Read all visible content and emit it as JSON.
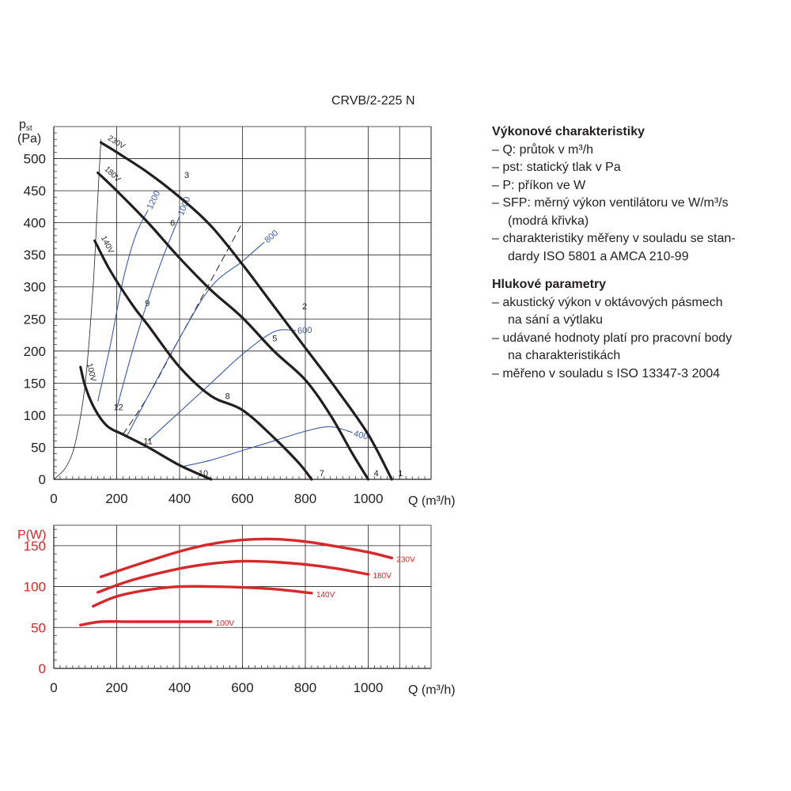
{
  "model": "CRVB/2-225 N",
  "legend": {
    "performance": {
      "heading": "Výkonové charakteristiky",
      "items": [
        "Q: průtok v m³/h",
        "pst: statický tlak v Pa",
        "P: příkon ve W",
        "SFP: měrný výkon ventilátoru ve W/m³/s",
        "charakteristiky měřeny v souladu se standardy ISO 5801 a AMCA 210-99"
      ],
      "lines": [
        [
          "Q: průtok v m³/h"
        ],
        [
          "pst: statický tlak v Pa"
        ],
        [
          "P: příkon ve W"
        ],
        [
          "SFP: měrný výkon ventilátoru ve W/m³/s",
          "(modrá křivka)"
        ],
        [
          "charakteristiky měřeny v souladu se stan-",
          "dardy ISO 5801 a AMCA 210-99"
        ]
      ]
    },
    "noise": {
      "heading": "Hlukové parametry",
      "lines": [
        [
          "akustický výkon v oktávových pásmech",
          "na sání a výtlaku"
        ],
        [
          "udávané hodnoty platí pro pracovní body",
          "na charakteristikách"
        ],
        [
          "měřeno v souladu s ISO 13347-3 2004"
        ]
      ]
    }
  },
  "chart_data": [
    {
      "type": "line",
      "ylabel_main": "p",
      "ylabel_sub": "st",
      "ylabel_unit": "(Pa)",
      "xlabel": "Q (m³/h)",
      "xlim": [
        0,
        1200
      ],
      "ylim": [
        0,
        550
      ],
      "x_ticks": [
        0,
        200,
        400,
        600,
        800,
        1000
      ],
      "y_ticks": [
        0,
        50,
        100,
        150,
        200,
        250,
        300,
        350,
        400,
        450,
        500
      ],
      "grid": true,
      "series": [
        {
          "name": "230V",
          "color": "#231f20",
          "points": [
            [
              150,
              525
            ],
            [
              200,
              510
            ],
            [
              300,
              478
            ],
            [
              400,
              440
            ],
            [
              500,
              395
            ],
            [
              600,
              335
            ],
            [
              700,
              270
            ],
            [
              800,
              205
            ],
            [
              900,
              140
            ],
            [
              1000,
              70
            ],
            [
              1075,
              0
            ]
          ]
        },
        {
          "name": "180V",
          "color": "#231f20",
          "points": [
            [
              140,
              478
            ],
            [
              200,
              450
            ],
            [
              300,
              400
            ],
            [
              400,
              345
            ],
            [
              500,
              295
            ],
            [
              600,
              252
            ],
            [
              700,
              200
            ],
            [
              800,
              155
            ],
            [
              880,
              100
            ],
            [
              950,
              40
            ],
            [
              1000,
              0
            ]
          ]
        },
        {
          "name": "140V",
          "color": "#231f20",
          "points": [
            [
              130,
              372
            ],
            [
              180,
              325
            ],
            [
              250,
              272
            ],
            [
              300,
              240
            ],
            [
              400,
              175
            ],
            [
              500,
              130
            ],
            [
              600,
              108
            ],
            [
              700,
              65
            ],
            [
              780,
              25
            ],
            [
              820,
              0
            ]
          ]
        },
        {
          "name": "100V",
          "color": "#231f20",
          "points": [
            [
              85,
              175
            ],
            [
              100,
              145
            ],
            [
              130,
              110
            ],
            [
              170,
              83
            ],
            [
              220,
              70
            ],
            [
              300,
              50
            ],
            [
              400,
              22
            ],
            [
              500,
              0
            ]
          ]
        }
      ],
      "sfp_curves": [
        {
          "name": "1200",
          "color": "#3a5ba7",
          "points": [
            [
              140,
              122
            ],
            [
              180,
              210
            ],
            [
              220,
              310
            ],
            [
              260,
              380
            ],
            [
              300,
              420
            ]
          ]
        },
        {
          "name": "1000",
          "color": "#3a5ba7",
          "points": [
            [
              200,
              110
            ],
            [
              250,
              200
            ],
            [
              300,
              280
            ],
            [
              350,
              350
            ],
            [
              400,
              410
            ]
          ]
        },
        {
          "name": "800",
          "color": "#3a5ba7",
          "points": [
            [
              230,
              65
            ],
            [
              300,
              130
            ],
            [
              400,
              220
            ],
            [
              500,
              300
            ],
            [
              600,
              340
            ],
            [
              670,
              370
            ]
          ]
        },
        {
          "name": "600",
          "color": "#3a5ba7",
          "points": [
            [
              300,
              60
            ],
            [
              400,
              105
            ],
            [
              500,
              150
            ],
            [
              600,
              195
            ],
            [
              700,
              230
            ],
            [
              770,
              232
            ]
          ]
        },
        {
          "name": "400",
          "color": "#3a5ba7",
          "points": [
            [
              410,
              20
            ],
            [
              500,
              30
            ],
            [
              600,
              45
            ],
            [
              700,
              60
            ],
            [
              800,
              75
            ],
            [
              880,
              82
            ],
            [
              950,
              73
            ]
          ]
        }
      ],
      "system_curve": {
        "points": [
          [
            0,
            0
          ],
          [
            40,
            20
          ],
          [
            70,
            60
          ],
          [
            100,
            150
          ],
          [
            125,
            300
          ],
          [
            140,
            440
          ],
          [
            150,
            530
          ]
        ]
      },
      "dashed_line": {
        "points": [
          [
            220,
            70
          ],
          [
            300,
            130
          ],
          [
            400,
            220
          ],
          [
            500,
            310
          ],
          [
            600,
            400
          ]
        ]
      },
      "operating_points": [
        {
          "label": "1",
          "x": 1085,
          "y": 0
        },
        {
          "label": "2",
          "x": 780,
          "y": 260
        },
        {
          "label": "3",
          "x": 405,
          "y": 465
        },
        {
          "label": "4",
          "x": 1008,
          "y": 0
        },
        {
          "label": "5",
          "x": 685,
          "y": 210
        },
        {
          "label": "6",
          "x": 360,
          "y": 390
        },
        {
          "label": "7",
          "x": 835,
          "y": 0
        },
        {
          "label": "8",
          "x": 535,
          "y": 120
        },
        {
          "label": "9",
          "x": 280,
          "y": 265
        },
        {
          "label": "10",
          "x": 450,
          "y": 0
        },
        {
          "label": "11",
          "x": 275,
          "y": 50
        },
        {
          "label": "12",
          "x": 180,
          "y": 103
        }
      ]
    },
    {
      "type": "line",
      "ylabel": "P(W)",
      "xlabel": "Q (m³/h)",
      "xlim": [
        0,
        1200
      ],
      "ylim": [
        0,
        175
      ],
      "x_ticks": [
        0,
        200,
        400,
        600,
        800,
        1000
      ],
      "y_ticks": [
        0,
        50,
        100,
        150
      ],
      "grid": true,
      "series": [
        {
          "name": "230V",
          "color": "#d7282b",
          "points": [
            [
              150,
              112
            ],
            [
              250,
              125
            ],
            [
              400,
              143
            ],
            [
              500,
              152
            ],
            [
              600,
              157
            ],
            [
              700,
              158
            ],
            [
              800,
              155
            ],
            [
              900,
              149
            ],
            [
              1000,
              142
            ],
            [
              1075,
              135
            ]
          ]
        },
        {
          "name": "180V",
          "color": "#d7282b",
          "points": [
            [
              140,
              93
            ],
            [
              250,
              108
            ],
            [
              400,
              122
            ],
            [
              500,
              128
            ],
            [
              600,
              131
            ],
            [
              700,
              130
            ],
            [
              800,
              127
            ],
            [
              900,
              122
            ],
            [
              1000,
              115
            ]
          ]
        },
        {
          "name": "140V",
          "color": "#d7282b",
          "points": [
            [
              125,
              76
            ],
            [
              200,
              88
            ],
            [
              300,
              96
            ],
            [
              400,
              100
            ],
            [
              500,
              100
            ],
            [
              600,
              99
            ],
            [
              700,
              97
            ],
            [
              820,
              92
            ]
          ]
        },
        {
          "name": "100V",
          "color": "#d7282b",
          "points": [
            [
              85,
              53
            ],
            [
              150,
              57
            ],
            [
              250,
              57
            ],
            [
              400,
              57
            ],
            [
              500,
              57
            ]
          ]
        }
      ]
    }
  ]
}
